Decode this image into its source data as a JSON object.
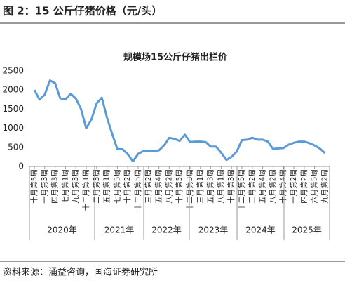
{
  "chart_data": {
    "type": "line",
    "caption": "图 2：15 公斤仔猪价格（元/头）",
    "title": "规模场15公斤仔猪出栏价",
    "source": "资料来源：涌益咨询，国海证券研究所",
    "categories": [
      "十月第5周",
      null,
      "一月第3周",
      null,
      "四月第3周",
      null,
      "七月第1周",
      null,
      "九月第3周",
      null,
      "十二月第1周",
      null,
      "二月第3周",
      null,
      "五月第1周",
      null,
      "七月第5周",
      null,
      "十月第2周",
      null,
      "十二月第5周",
      null,
      "三月第2周",
      null,
      "五月第4周",
      null,
      "八月第2周",
      null,
      "十月第5周",
      null,
      "十二月第3周",
      null,
      "三月第1周",
      null,
      "五月第3周",
      null,
      "八月第1周",
      null,
      "十月第3周",
      null,
      "十二月第5周",
      null,
      "三月第2周",
      null,
      "五月第4周",
      null,
      "八月第2周",
      null,
      "十月第4周",
      null,
      "一月第2周",
      null,
      "四月第2周",
      null,
      "六月第5周",
      null,
      "九月第2周"
    ],
    "x_groups": [
      "2020年",
      "2021年",
      "2022年",
      "2023年",
      "2024年",
      "2025年"
    ],
    "series": [
      {
        "name": "规模场15公斤仔猪出栏价",
        "color": "#5b9bd5",
        "values": [
          2000,
          1750,
          1880,
          2250,
          2180,
          1780,
          1760,
          1900,
          1780,
          1500,
          1000,
          1230,
          1650,
          1800,
          1280,
          850,
          450,
          450,
          320,
          130,
          330,
          400,
          400,
          400,
          420,
          550,
          750,
          720,
          670,
          830,
          640,
          650,
          650,
          640,
          520,
          520,
          360,
          170,
          250,
          390,
          690,
          700,
          750,
          700,
          700,
          650,
          460,
          470,
          480,
          570,
          620,
          650,
          650,
          610,
          550,
          470,
          350
        ]
      }
    ],
    "ylim": [
      0,
      2500
    ],
    "yticks": [
      0,
      500,
      1000,
      1500,
      2000,
      2500
    ],
    "grid": false
  }
}
